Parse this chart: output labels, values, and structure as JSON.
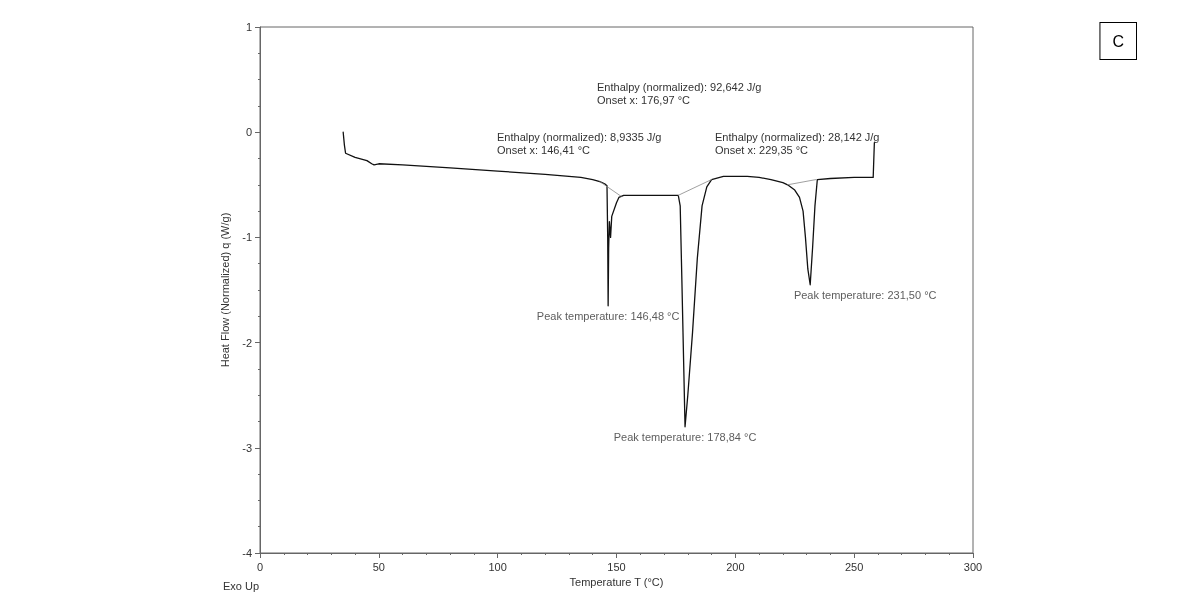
{
  "chart_data": {
    "type": "line",
    "xlabel": "Temperature T (°C)",
    "ylabel": "Heat Flow (Normalized) q (W/g)",
    "xlim": [
      0,
      300
    ],
    "xticks": [
      0,
      50,
      100,
      150,
      200,
      250,
      300
    ],
    "ylim": [
      -4,
      1
    ],
    "yticks": [
      -4,
      -3,
      -2,
      -1,
      0,
      1
    ],
    "grid": false,
    "marker": "none",
    "line_style": "solid",
    "series": [
      {
        "color": "#111111",
        "x": [
          35,
          35.5,
          36,
          40,
          45,
          47,
          48,
          50,
          60,
          80,
          100,
          120,
          135,
          140,
          143,
          145,
          146,
          146.3,
          146.48,
          146.7,
          147,
          147.5,
          148,
          150,
          151,
          153,
          160,
          170,
          176,
          176.8,
          177.5,
          178.84,
          180,
          182,
          184,
          186,
          188,
          190,
          195,
          200,
          205,
          210,
          215,
          220,
          222,
          225,
          227,
          228.5,
          229.5,
          230.5,
          231.5,
          232.5,
          233.5,
          234.5,
          240,
          250,
          257,
          258,
          258.5
        ],
        "values": [
          0,
          -0.12,
          -0.2,
          -0.24,
          -0.27,
          -0.3,
          -0.31,
          -0.3,
          -0.31,
          -0.34,
          -0.37,
          -0.4,
          -0.43,
          -0.45,
          -0.47,
          -0.49,
          -0.51,
          -1.0,
          -1.65,
          -1.1,
          -0.85,
          -1.0,
          -0.8,
          -0.67,
          -0.62,
          -0.6,
          -0.6,
          -0.6,
          -0.6,
          -0.7,
          -1.4,
          -2.8,
          -2.5,
          -1.9,
          -1.2,
          -0.7,
          -0.52,
          -0.45,
          -0.42,
          -0.42,
          -0.42,
          -0.43,
          -0.45,
          -0.48,
          -0.5,
          -0.55,
          -0.62,
          -0.75,
          -1.0,
          -1.3,
          -1.45,
          -1.1,
          -0.7,
          -0.45,
          -0.44,
          -0.43,
          -0.43,
          -0.43,
          -0.1
        ]
      },
      {
        "color": "#888888",
        "x": [
          143,
          152
        ],
        "values": [
          -0.47,
          -0.61
        ]
      },
      {
        "color": "#888888",
        "x": [
          176,
          190
        ],
        "values": [
          -0.6,
          -0.45
        ]
      },
      {
        "color": "#888888",
        "x": [
          222,
          234
        ],
        "values": [
          -0.5,
          -0.45
        ]
      }
    ],
    "annotations": [
      "Exo Up",
      "C",
      "Enthalpy (normalized): 8,9335 J/g\nOnset x: 146,41 °C",
      "Enthalpy (normalized): 92,642 J/g\nOnset x: 176,97 °C",
      "Enthalpy (normalized): 28,142 J/g\nOnset x: 229,35 °C",
      {
        "text": "Peak temperature: 146,48 °C",
        "x": 146.48,
        "y": -1.65
      },
      {
        "text": "Peak temperature: 178,84 °C",
        "x": 178.84,
        "y": -2.8
      },
      {
        "text": "Peak temperature: 231,50 °C",
        "x": 231.5,
        "y": -1.45
      }
    ]
  }
}
